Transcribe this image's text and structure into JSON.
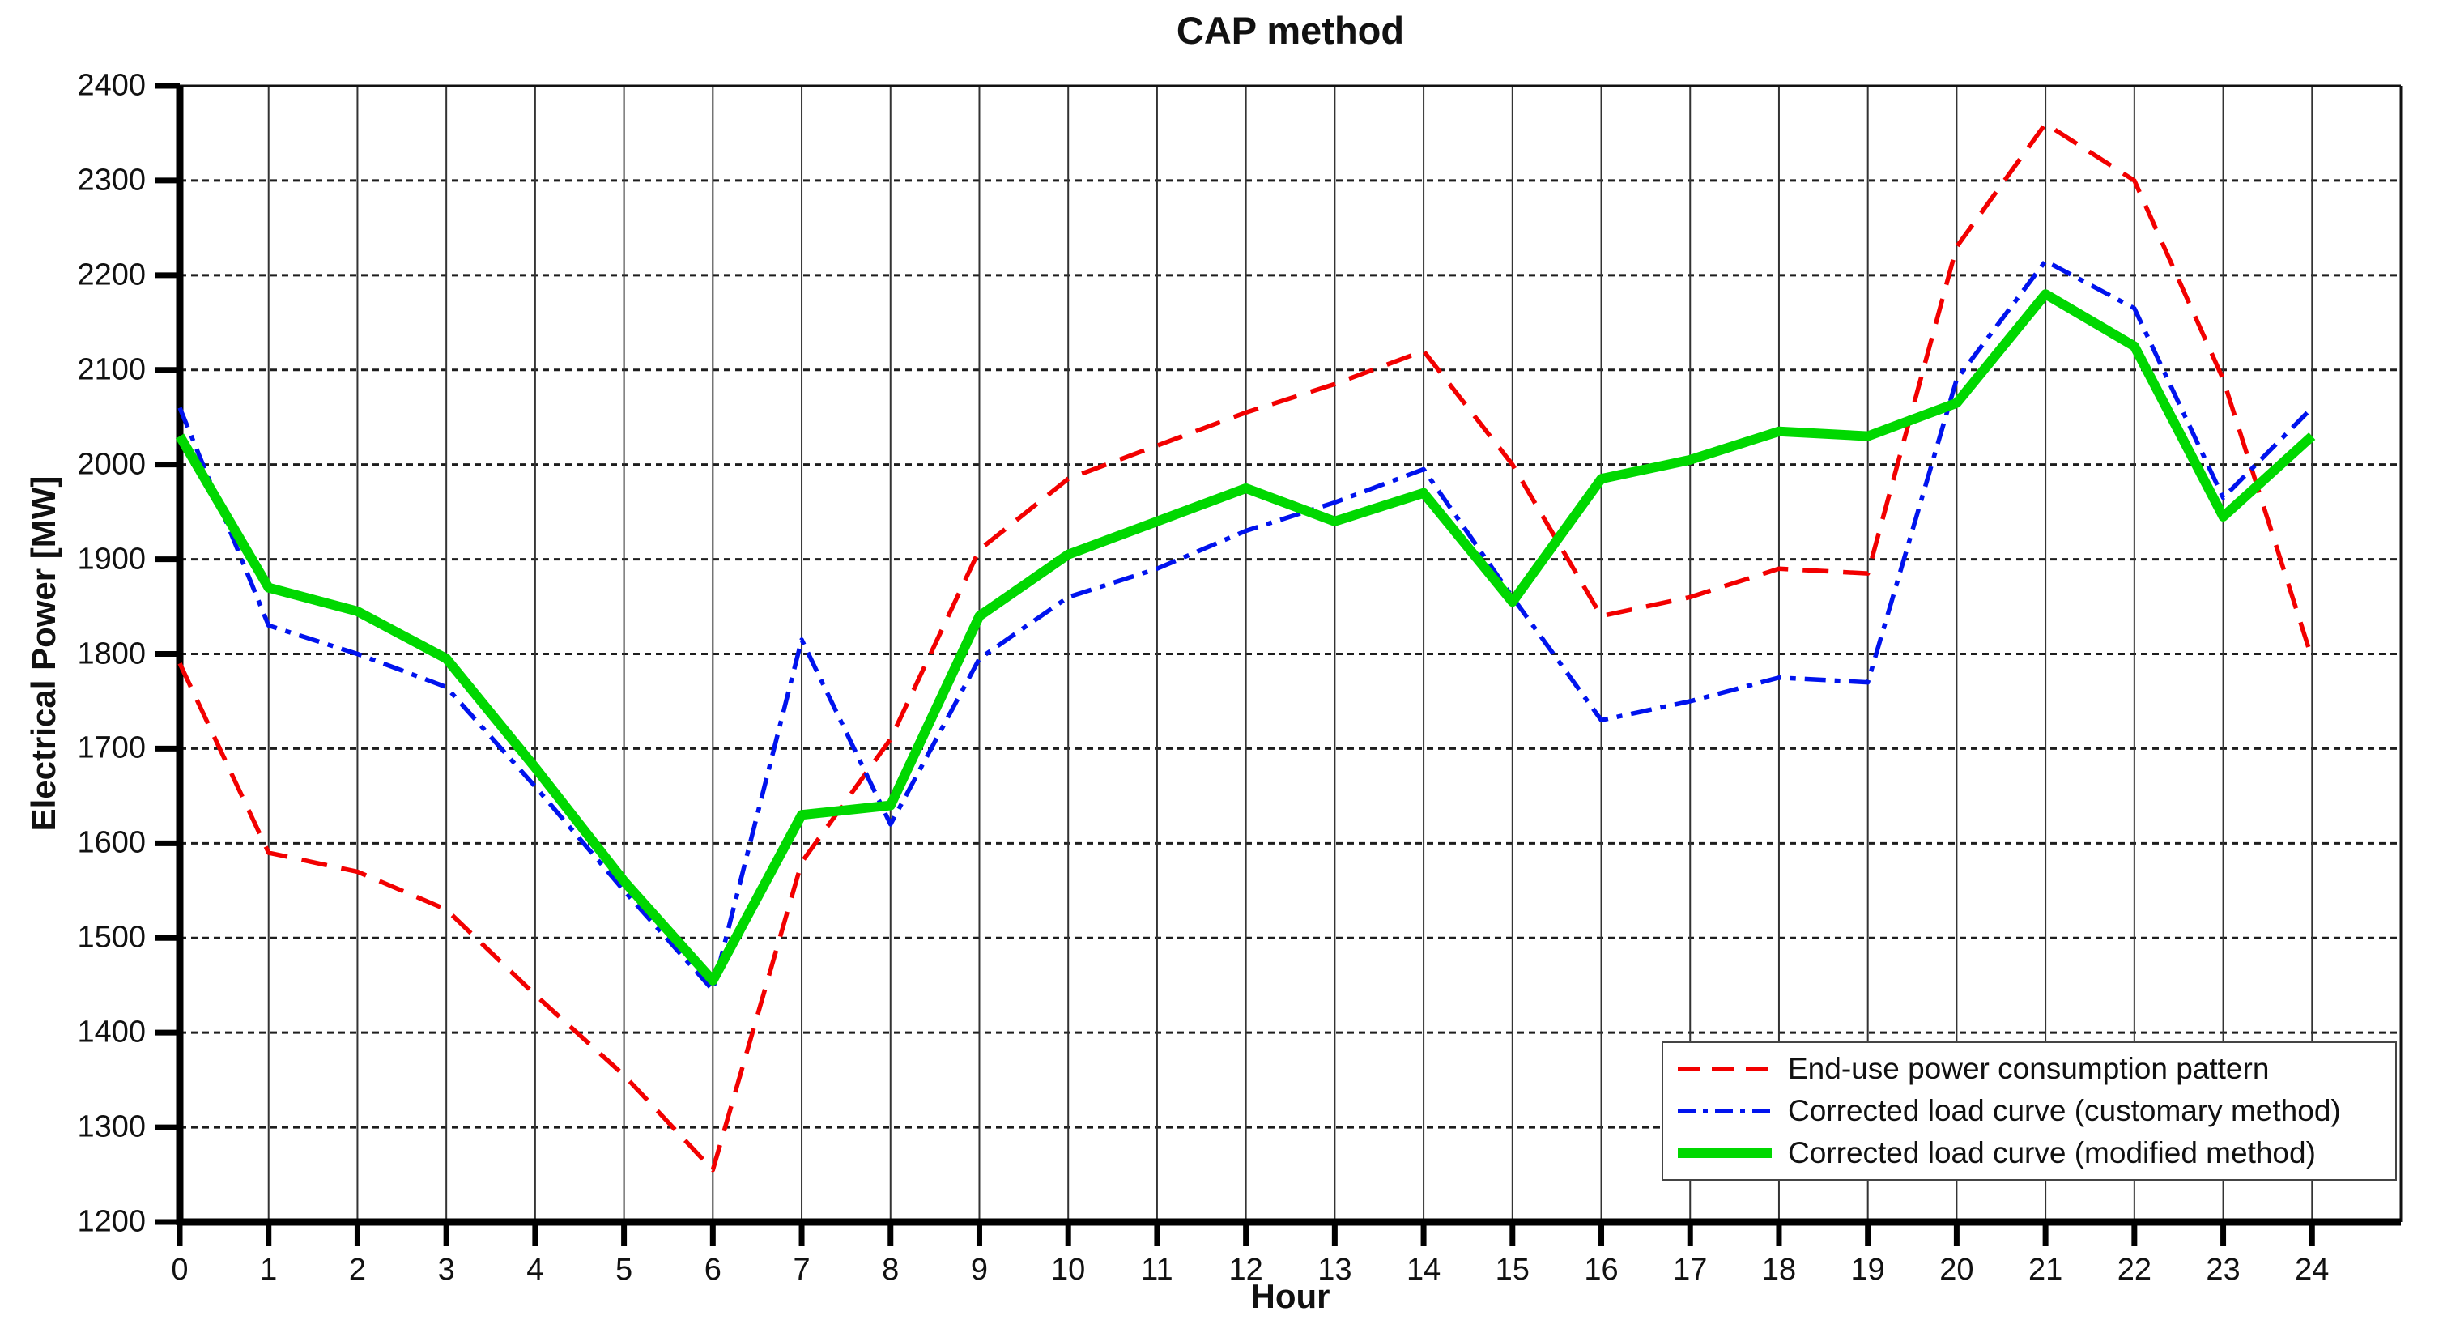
{
  "title": "CAP method",
  "xlabel": "Hour",
  "ylabel": "Electrical Power [MW]",
  "chart_data": {
    "type": "line",
    "title": "CAP method",
    "xlabel": "Hour",
    "ylabel": "Electrical Power [MW]",
    "xlim": [
      0,
      25
    ],
    "ylim": [
      1200,
      2400
    ],
    "grid": true,
    "legend_position": "lower-right",
    "x_ticks": [
      0,
      1,
      2,
      3,
      4,
      5,
      6,
      7,
      8,
      9,
      10,
      11,
      12,
      13,
      14,
      15,
      16,
      17,
      18,
      19,
      20,
      21,
      22,
      23,
      24
    ],
    "y_ticks": [
      1200,
      1300,
      1400,
      1500,
      1600,
      1700,
      1800,
      1900,
      2000,
      2100,
      2200,
      2300,
      2400
    ],
    "x": [
      0,
      1,
      2,
      3,
      4,
      5,
      6,
      7,
      8,
      9,
      10,
      11,
      12,
      13,
      14,
      15,
      16,
      17,
      18,
      19,
      20,
      21,
      22,
      23,
      24
    ],
    "series": [
      {
        "name": "End-use power consumption pattern",
        "color": "#f20000",
        "style": "dashed",
        "values": [
          1790,
          1590,
          1570,
          1530,
          1440,
          1355,
          1255,
          1580,
          1710,
          1910,
          1985,
          2020,
          2055,
          2085,
          2120,
          2000,
          1840,
          1860,
          1890,
          1885,
          2230,
          2360,
          2300,
          2090,
          1795
        ]
      },
      {
        "name": "Corrected load curve (customary method)",
        "color": "#0013ee",
        "style": "dashdot",
        "values": [
          2060,
          1830,
          1800,
          1765,
          1660,
          1550,
          1445,
          1815,
          1620,
          1795,
          1860,
          1890,
          1930,
          1960,
          1995,
          1860,
          1730,
          1750,
          1775,
          1770,
          2090,
          2215,
          2165,
          1965,
          2060
        ]
      },
      {
        "name": "Corrected load curve (modified method)",
        "color": "#00d800",
        "style": "solid",
        "values": [
          2030,
          1870,
          1845,
          1795,
          1680,
          1560,
          1455,
          1630,
          1640,
          1840,
          1905,
          1940,
          1975,
          1940,
          1970,
          1855,
          1985,
          2005,
          2035,
          2030,
          2065,
          2180,
          2125,
          1945,
          2030
        ]
      }
    ]
  }
}
